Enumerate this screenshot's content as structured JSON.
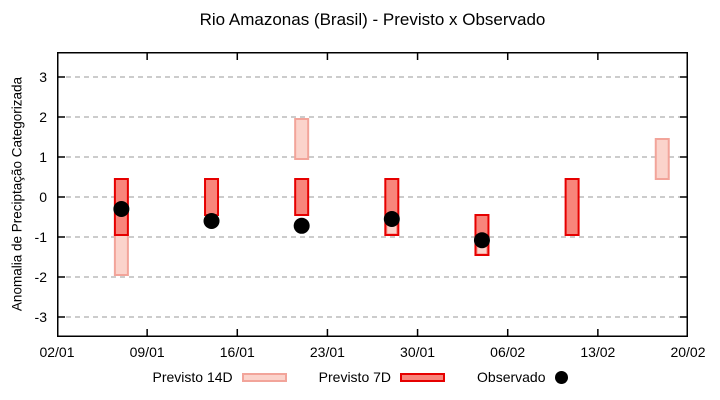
{
  "chart_data": {
    "type": "bar",
    "title": "Rio Amazonas (Brasil) - Previsto x Observado",
    "ylabel": "Anomalia de Preciptação Categorizada",
    "xlabel": "",
    "x_tick_labels": [
      "02/01",
      "09/01",
      "16/01",
      "23/01",
      "30/01",
      "06/02",
      "13/02",
      "20/02"
    ],
    "x_tick_days": [
      0,
      7,
      14,
      21,
      28,
      35,
      42,
      49
    ],
    "xlim_days": [
      0,
      49
    ],
    "y_ticks": [
      3,
      2,
      1,
      0,
      -1,
      -2,
      -3
    ],
    "ylim": [
      -3.5,
      3.625
    ],
    "grid": "horizontal dashed at integer y values",
    "legend_position": "bottom-center",
    "legend": [
      {
        "label": "Previsto 14D",
        "type": "14d"
      },
      {
        "label": "Previsto 7D",
        "type": "7d"
      },
      {
        "label": "Observado",
        "type": "dot"
      }
    ],
    "colors": {
      "previsto_7d_fill": "#f8857b",
      "previsto_7d_border": "#e60000",
      "previsto_14d_fill": "#fbd3cb",
      "previsto_14d_border": "#f2a49a",
      "observado": "#000000",
      "grid": "#999999",
      "axis": "#000000"
    },
    "points": [
      {
        "date": "07/01",
        "day": 5,
        "previsto_7d": {
          "from": 0.45,
          "to": -0.95
        },
        "previsto_14d": {
          "from": -0.95,
          "to": -1.95,
          "style": "bar"
        },
        "observado": -0.3
      },
      {
        "date": "14/01",
        "day": 12,
        "previsto_7d": {
          "from": 0.45,
          "to": -0.45
        },
        "previsto_14d": null,
        "observado": -0.6
      },
      {
        "date": "21/01",
        "day": 19,
        "previsto_7d": {
          "from": 0.45,
          "to": -0.45
        },
        "previsto_14d": {
          "from": 1.95,
          "to": 0.95,
          "style": "bar"
        },
        "observado": -0.72
      },
      {
        "date": "28/01",
        "day": 26,
        "previsto_7d": {
          "from": 0.45,
          "to": -0.95
        },
        "previsto_14d": {
          "from": -0.65,
          "to": -0.95,
          "style": "inner"
        },
        "observado": -0.55
      },
      {
        "date": "04/02",
        "day": 33,
        "previsto_7d": {
          "from": -0.45,
          "to": -1.45
        },
        "previsto_14d": {
          "from": -1.15,
          "to": -1.45,
          "style": "inner"
        },
        "observado": -1.08
      },
      {
        "date": "11/02",
        "day": 40,
        "previsto_7d": {
          "from": 0.45,
          "to": -0.95
        },
        "previsto_14d": null,
        "observado": null
      },
      {
        "date": "18/02",
        "day": 47,
        "previsto_7d": null,
        "previsto_14d": {
          "from": 1.45,
          "to": 0.45,
          "style": "bar"
        },
        "observado": null
      }
    ]
  }
}
